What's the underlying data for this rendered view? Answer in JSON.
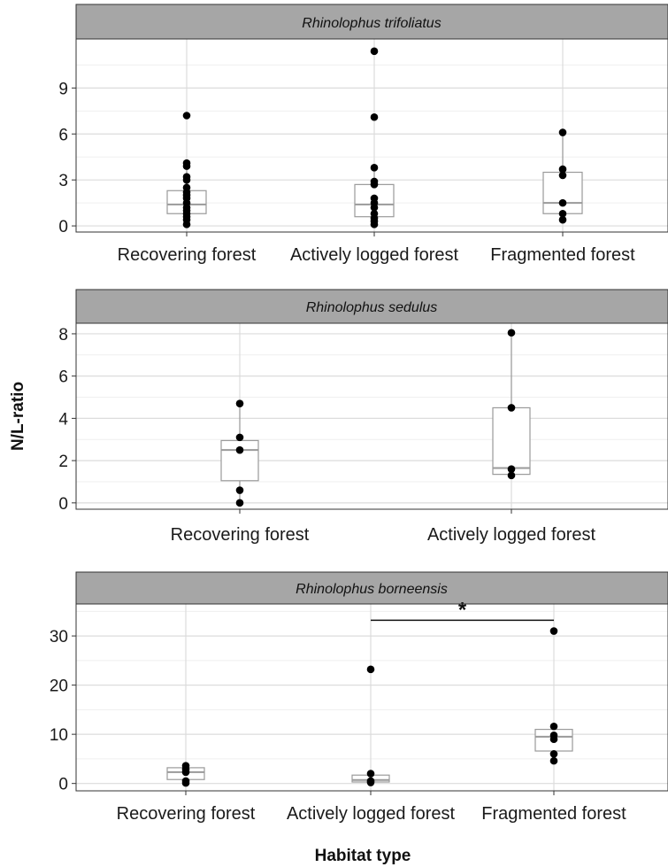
{
  "ylabel": "N/L-ratio",
  "xlabel": "Habitat type",
  "colors": {
    "strip": "#a6a6a6",
    "panel_border": "#333333",
    "grid_major": "#dcdcdc",
    "grid_minor": "#efefef",
    "box": "#9a9a9a",
    "point": "#000000"
  },
  "chart_data": [
    {
      "type": "box",
      "title": "Rhinolophus trifoliatus",
      "categories": [
        "Recovering forest",
        "Actively logged forest",
        "Fragmented forest"
      ],
      "yticks": [
        0,
        3,
        6,
        9
      ],
      "ylim": [
        -0.4,
        12.2
      ],
      "boxes": [
        {
          "q1": 0.8,
          "median": 1.4,
          "q3": 2.3,
          "whisker_low": 0.1,
          "whisker_high": 4.0
        },
        {
          "q1": 0.6,
          "median": 1.4,
          "q3": 2.7,
          "whisker_low": 0.1,
          "whisker_high": 3.8
        },
        {
          "q1": 0.8,
          "median": 1.5,
          "q3": 3.5,
          "whisker_low": 0.3,
          "whisker_high": 6.1
        }
      ],
      "points": [
        [
          7.2,
          4.1,
          3.9,
          3.2,
          3.0,
          2.5,
          2.2,
          2.0,
          1.8,
          1.5,
          1.2,
          1.0,
          0.8,
          0.6,
          0.4,
          0.1
        ],
        [
          11.4,
          7.1,
          3.8,
          2.9,
          2.7,
          1.8,
          1.5,
          1.2,
          0.8,
          0.5,
          0.3,
          0.1
        ],
        [
          6.1,
          3.7,
          3.3,
          1.5,
          0.8,
          0.4
        ]
      ],
      "significance": null
    },
    {
      "type": "box",
      "title": "Rhinolophus sedulus",
      "categories": [
        "Recovering forest",
        "Actively logged forest"
      ],
      "yticks": [
        0,
        2,
        4,
        6,
        8
      ],
      "ylim": [
        -0.3,
        8.5
      ],
      "boxes": [
        {
          "q1": 1.05,
          "median": 2.5,
          "q3": 2.95,
          "whisker_low": 0.0,
          "whisker_high": 4.7
        },
        {
          "q1": 1.35,
          "median": 1.65,
          "q3": 4.5,
          "whisker_low": 1.3,
          "whisker_high": 8.05
        }
      ],
      "points": [
        [
          4.7,
          3.1,
          2.5,
          0.6,
          0.0
        ],
        [
          8.05,
          4.5,
          1.6,
          1.3
        ]
      ],
      "significance": null
    },
    {
      "type": "box",
      "title": "Rhinolophus borneensis",
      "categories": [
        "Recovering forest",
        "Actively logged forest",
        "Fragmented forest"
      ],
      "yticks": [
        0,
        10,
        20,
        30
      ],
      "ylim": [
        -1.5,
        36.5
      ],
      "boxes": [
        {
          "q1": 0.8,
          "median": 2.3,
          "q3": 3.2,
          "whisker_low": 0.1,
          "whisker_high": 3.6
        },
        {
          "q1": 0.3,
          "median": 0.7,
          "q3": 1.7,
          "whisker_low": 0.1,
          "whisker_high": 2.0
        },
        {
          "q1": 6.6,
          "median": 9.5,
          "q3": 11.0,
          "whisker_low": 4.6,
          "whisker_high": 11.6
        }
      ],
      "points": [
        [
          3.6,
          2.9,
          2.3,
          0.5,
          0.1
        ],
        [
          23.2,
          2.0,
          0.5,
          0.2
        ],
        [
          31.0,
          11.6,
          9.8,
          9.0,
          6.0,
          4.6
        ]
      ],
      "significance": {
        "from": 1,
        "to": 2,
        "y": 33.2,
        "label": "*"
      }
    }
  ]
}
